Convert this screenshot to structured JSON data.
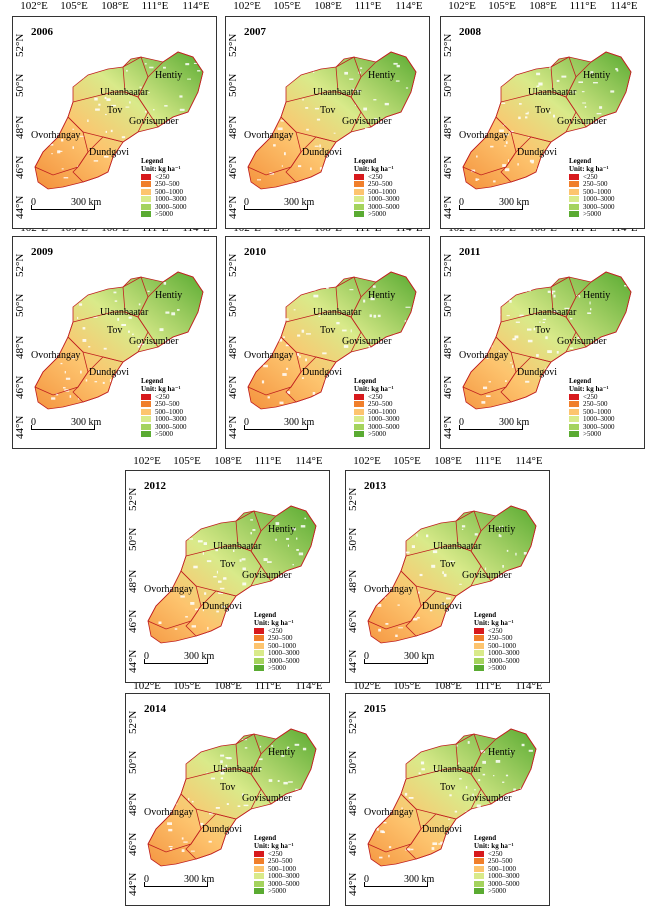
{
  "longitude_labels": [
    "102°E",
    "105°E",
    "108°E",
    "111°E",
    "114°E"
  ],
  "latitude_labels": [
    "44°N",
    "46°N",
    "48°N",
    "50°N",
    "52°N"
  ],
  "regions": [
    "Hentiy",
    "Ulaanbaatar",
    "Tov",
    "Govisumber",
    "Ovorhangay",
    "Dundgovi"
  ],
  "legend": {
    "title": "Legend",
    "unit": "Unit: kg ha⁻¹",
    "classes": [
      {
        "label": "<250",
        "color": "#d7191c"
      },
      {
        "label": "250–500",
        "color": "#f07f2b"
      },
      {
        "label": "500–1000",
        "color": "#fdc46e"
      },
      {
        "label": "1000–3000",
        "color": "#d9ea8a"
      },
      {
        "label": "3000–5000",
        "color": "#a4d35d"
      },
      {
        "label": ">5000",
        "color": "#5aab32"
      }
    ]
  },
  "scale_bar": {
    "zero": "0",
    "distance": "300 km"
  },
  "panels": [
    {
      "year": "2006",
      "green": 0.45
    },
    {
      "year": "2007",
      "green": 0.55
    },
    {
      "year": "2008",
      "green": 0.55
    },
    {
      "year": "2009",
      "green": 0.6
    },
    {
      "year": "2010",
      "green": 0.55
    },
    {
      "year": "2011",
      "green": 0.75
    },
    {
      "year": "2012",
      "green": 0.8
    },
    {
      "year": "2013",
      "green": 0.7
    },
    {
      "year": "2014",
      "green": 0.65
    },
    {
      "year": "2015",
      "green": 0.7
    }
  ]
}
